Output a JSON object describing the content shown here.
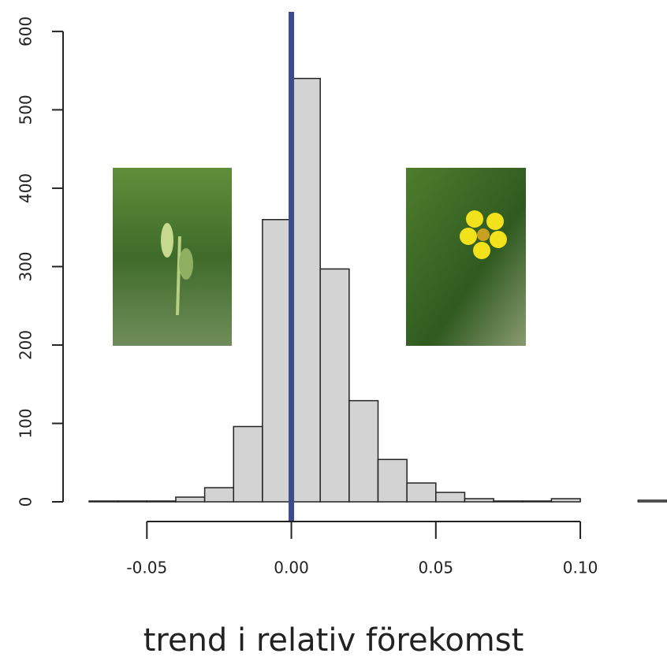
{
  "chart_data": {
    "type": "histogram",
    "x_label": "trend i relativ förekomst",
    "bins": [
      -0.07,
      -0.06,
      -0.05,
      -0.04,
      -0.03,
      -0.02,
      -0.01,
      0,
      0.01,
      0.02,
      0.03,
      0.04,
      0.05,
      0.06,
      0.07,
      0.08,
      0.09,
      0.1,
      0.11,
      0.12,
      0.13
    ],
    "counts": [
      1,
      1,
      1,
      6,
      18,
      96,
      360,
      540,
      297,
      129,
      54,
      24,
      12,
      4,
      1,
      1,
      4,
      0,
      0,
      2
    ],
    "color": "#d3d3d3",
    "edge_color": "#222222",
    "xlim": [
      -0.07,
      0.13
    ],
    "ylim": [
      0,
      625
    ],
    "xticks": [
      {
        "value": -0.05,
        "label": "-0.05"
      },
      {
        "value": 0,
        "label": "0.00"
      },
      {
        "value": 0.05,
        "label": "0.05"
      },
      {
        "value": 0.1,
        "label": "0.10"
      }
    ],
    "yticks": [
      0,
      100,
      200,
      300,
      400,
      500,
      600
    ],
    "vline": {
      "value": 0,
      "color": "#3d4a8c"
    }
  }
}
